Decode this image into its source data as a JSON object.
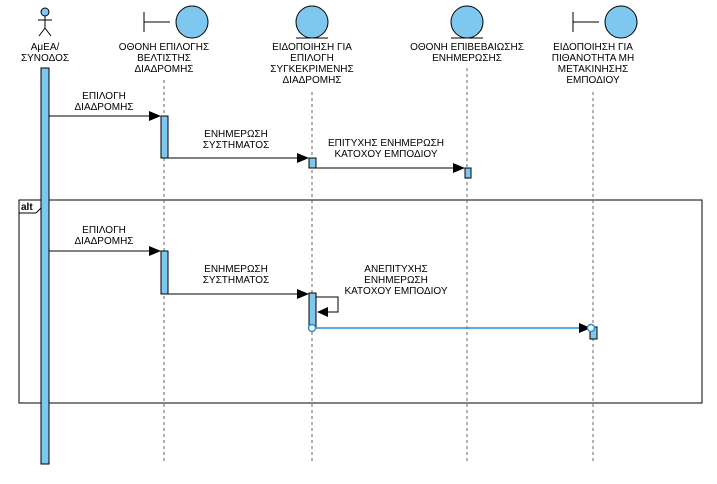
{
  "diagram": {
    "participants": [
      {
        "kind": "actor",
        "lines": [
          "ΑμΕΑ/",
          "ΣΥΝΟΔΟΣ"
        ]
      },
      {
        "kind": "boundary",
        "lines": [
          "ΟΘΟΝΗ ΕΠΙΛΟΓΗΣ",
          "ΒΕΛΤΙΣΤΗΣ",
          "ΔΙΑΔΡΟΜΗΣ"
        ]
      },
      {
        "kind": "entity",
        "lines": [
          "ΕΙΔΟΠΟΙΗΣΗ ΓΙΑ",
          "ΕΠΙΛΟΓΗ",
          "ΣΥΓΚΕΚΡΙΜΕΝΗΣ",
          "ΔΙΑΔΡΟΜΗΣ"
        ]
      },
      {
        "kind": "entity",
        "lines": [
          "ΟΘΟΝΗ ΕΠΙΒΕΒΑΙΩΣΗΣ",
          "ΕΝΗΜΕΡΩΣΗΣ"
        ]
      },
      {
        "kind": "boundary",
        "lines": [
          "ΕΙΔΟΠΟΙΗΣΗ ΓΙΑ",
          "ΠΙΘΑΝΟΤΗΤΑ ΜΗ",
          "ΜΕΤΑΚΙΝΗΣΗΣ",
          "ΕΜΠΟΔΙΟΥ"
        ]
      }
    ],
    "messages": [
      {
        "lines": [
          "ΕΠΙΛΟΓΗ",
          "ΔΙΑΔΡΟΜΗΣ"
        ]
      },
      {
        "lines": [
          "ΕΝΗΜΕΡΩΣΗ",
          "ΣΥΣΤΗΜΑΤΟΣ"
        ]
      },
      {
        "lines": [
          "ΕΠΙΤΥΧΗΣ ΕΝΗΜΕΡΩΣΗ",
          "ΚΑΤΟΧΟΥ ΕΜΠΟΔΙΟΥ"
        ]
      },
      {
        "lines": [
          "ΕΠΙΛΟΓΗ",
          "ΔΙΑΔΡΟΜΗΣ"
        ]
      },
      {
        "lines": [
          "ΕΝΗΜΕΡΩΣΗ",
          "ΣΥΣΤΗΜΑΤΟΣ"
        ]
      },
      {
        "lines": [
          "ΑΝΕΠΙΤΥΧΗΣ",
          "ΕΝΗΜΕΡΩΣΗ",
          "ΚΑΤΟΧΟΥ ΕΜΠΟΔΙΟΥ"
        ]
      },
      {
        "lines": []
      }
    ],
    "fragment": {
      "operator": "alt"
    },
    "colors": {
      "activation": "#7ec8ef",
      "stroke": "#000000",
      "lifeline": "#666666",
      "connector": "#1f8fd6"
    }
  }
}
